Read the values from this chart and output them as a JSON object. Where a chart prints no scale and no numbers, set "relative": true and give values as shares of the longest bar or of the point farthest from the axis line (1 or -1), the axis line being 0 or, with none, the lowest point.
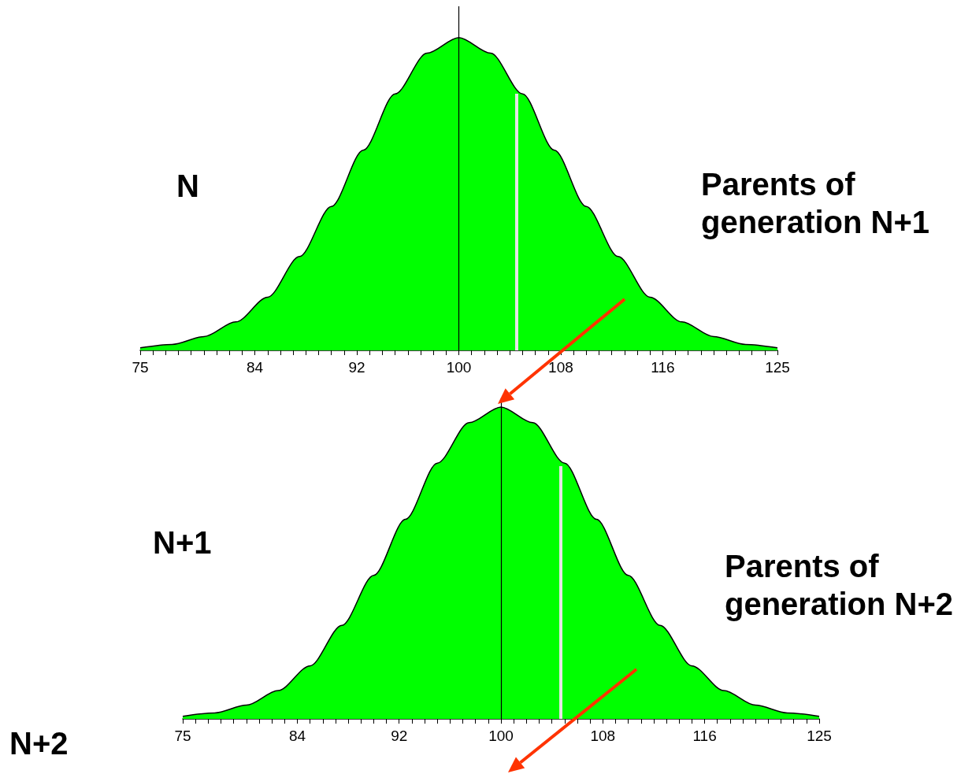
{
  "chart_data": [
    {
      "type": "area",
      "relative": true,
      "annotations": [
        "N",
        "Parents of generation N+1"
      ],
      "x": [
        75,
        77.5,
        80,
        82.5,
        85,
        87.5,
        90,
        92.5,
        95,
        97.5,
        100,
        102.5,
        105,
        107.5,
        110,
        112.5,
        115,
        117.5,
        120,
        122.5,
        125
      ],
      "series": [
        {
          "color": "#00ff00",
          "values": [
            0.008,
            0.019,
            0.044,
            0.091,
            0.17,
            0.3,
            0.46,
            0.64,
            0.82,
            0.95,
            1,
            0.95,
            0.82,
            0.64,
            0.46,
            0.3,
            0.17,
            0.091,
            0.044,
            0.019,
            0.008
          ]
        }
      ],
      "xlim": [
        75,
        125
      ],
      "xticks": [
        75,
        {
          "value": 76,
          "label": null
        },
        {
          "value": 77,
          "label": null
        },
        {
          "value": 78,
          "label": null
        },
        {
          "value": 79,
          "label": null
        },
        {
          "value": 80,
          "label": null
        },
        {
          "value": 81,
          "label": null
        },
        {
          "value": 82,
          "label": null
        },
        {
          "value": 83,
          "label": null
        },
        84,
        {
          "value": 85,
          "label": null
        },
        {
          "value": 86,
          "label": null
        },
        {
          "value": 87,
          "label": null
        },
        {
          "value": 88,
          "label": null
        },
        {
          "value": 89,
          "label": null
        },
        {
          "value": 90,
          "label": null
        },
        {
          "value": 91,
          "label": null
        },
        92,
        {
          "value": 93,
          "label": null
        },
        {
          "value": 94,
          "label": null
        },
        {
          "value": 95,
          "label": null
        },
        {
          "value": 96,
          "label": null
        },
        {
          "value": 97,
          "label": null
        },
        {
          "value": 98,
          "label": null
        },
        {
          "value": 99,
          "label": null
        },
        100,
        {
          "value": 101,
          "label": null
        },
        {
          "value": 102,
          "label": null
        },
        {
          "value": 103,
          "label": null
        },
        {
          "value": 104,
          "label": null
        },
        {
          "value": 105,
          "label": null
        },
        {
          "value": 106,
          "label": null
        },
        {
          "value": 107,
          "label": null
        },
        108,
        {
          "value": 109,
          "label": null
        },
        {
          "value": 110,
          "label": null
        },
        {
          "value": 111,
          "label": null
        },
        {
          "value": 112,
          "label": null
        },
        {
          "value": 113,
          "label": null
        },
        {
          "value": 114,
          "label": null
        },
        {
          "value": 115,
          "label": null
        },
        116,
        {
          "value": 117,
          "label": null
        },
        {
          "value": 118,
          "label": null
        },
        {
          "value": 119,
          "label": null
        },
        {
          "value": 120,
          "label": null
        },
        {
          "value": 121,
          "label": null
        },
        {
          "value": 122,
          "label": null
        },
        {
          "value": 123,
          "label": null
        },
        {
          "value": 124,
          "label": null
        },
        125
      ],
      "ref_lines": [
        {
          "axis": "x",
          "value": 100,
          "color": "#000000"
        },
        {
          "axis": "x",
          "value": 104.5,
          "color": "#e6e6e6"
        }
      ]
    },
    {
      "type": "area",
      "relative": true,
      "annotations": [
        "N+1",
        "Parents of generation N+2",
        "N+2"
      ],
      "x": [
        75,
        77.5,
        80,
        82.5,
        85,
        87.5,
        90,
        92.5,
        95,
        97.5,
        100,
        102.5,
        105,
        107.5,
        110,
        112.5,
        115,
        117.5,
        120,
        122.5,
        125
      ],
      "series": [
        {
          "color": "#00ff00",
          "values": [
            0.008,
            0.019,
            0.044,
            0.091,
            0.17,
            0.3,
            0.46,
            0.64,
            0.82,
            0.95,
            1,
            0.95,
            0.82,
            0.64,
            0.46,
            0.3,
            0.17,
            0.091,
            0.044,
            0.019,
            0.008
          ]
        }
      ],
      "xlim": [
        75,
        125
      ],
      "xticks": [
        75,
        {
          "value": 76,
          "label": null
        },
        {
          "value": 77,
          "label": null
        },
        {
          "value": 78,
          "label": null
        },
        {
          "value": 79,
          "label": null
        },
        {
          "value": 80,
          "label": null
        },
        {
          "value": 81,
          "label": null
        },
        {
          "value": 82,
          "label": null
        },
        {
          "value": 83,
          "label": null
        },
        84,
        {
          "value": 85,
          "label": null
        },
        {
          "value": 86,
          "label": null
        },
        {
          "value": 87,
          "label": null
        },
        {
          "value": 88,
          "label": null
        },
        {
          "value": 89,
          "label": null
        },
        {
          "value": 90,
          "label": null
        },
        {
          "value": 91,
          "label": null
        },
        92,
        {
          "value": 93,
          "label": null
        },
        {
          "value": 94,
          "label": null
        },
        {
          "value": 95,
          "label": null
        },
        {
          "value": 96,
          "label": null
        },
        {
          "value": 97,
          "label": null
        },
        {
          "value": 98,
          "label": null
        },
        {
          "value": 99,
          "label": null
        },
        100,
        {
          "value": 101,
          "label": null
        },
        {
          "value": 102,
          "label": null
        },
        {
          "value": 103,
          "label": null
        },
        {
          "value": 104,
          "label": null
        },
        {
          "value": 105,
          "label": null
        },
        {
          "value": 106,
          "label": null
        },
        {
          "value": 107,
          "label": null
        },
        108,
        {
          "value": 109,
          "label": null
        },
        {
          "value": 110,
          "label": null
        },
        {
          "value": 111,
          "label": null
        },
        {
          "value": 112,
          "label": null
        },
        {
          "value": 113,
          "label": null
        },
        {
          "value": 114,
          "label": null
        },
        {
          "value": 115,
          "label": null
        },
        116,
        {
          "value": 117,
          "label": null
        },
        {
          "value": 118,
          "label": null
        },
        {
          "value": 119,
          "label": null
        },
        {
          "value": 120,
          "label": null
        },
        {
          "value": 121,
          "label": null
        },
        {
          "value": 122,
          "label": null
        },
        {
          "value": 123,
          "label": null
        },
        {
          "value": 124,
          "label": null
        },
        125
      ],
      "ref_lines": [
        {
          "axis": "x",
          "value": 100,
          "color": "#000000"
        },
        {
          "axis": "x",
          "value": 104.7,
          "color": "#e6e6e6"
        }
      ]
    }
  ]
}
